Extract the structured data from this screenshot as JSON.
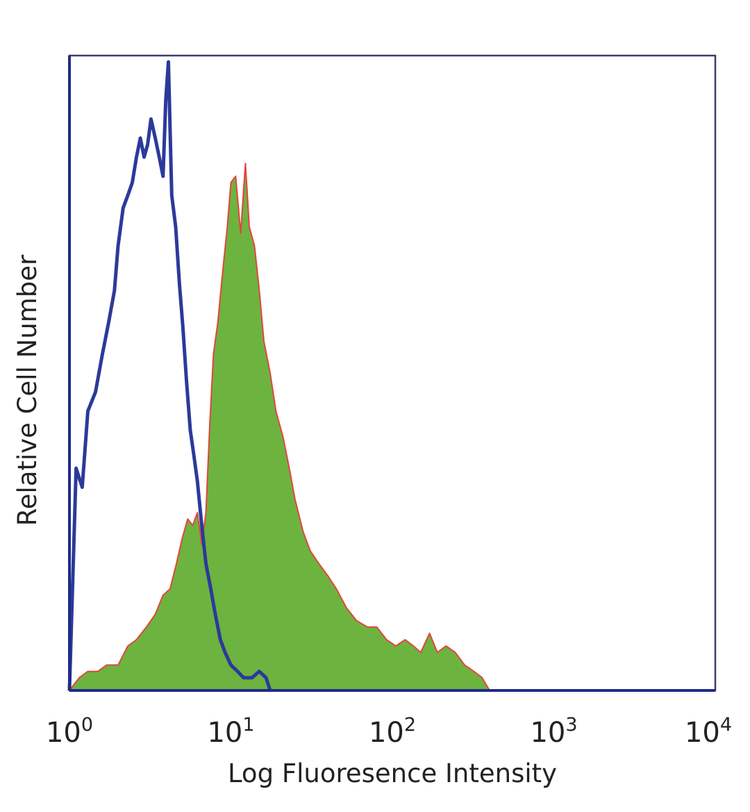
{
  "chart_data": {
    "type": "area",
    "xlabel": "Log Fluoresence Intensity",
    "ylabel": "Relative Cell Number",
    "x_scale": "log",
    "xlim": [
      1,
      10000
    ],
    "ylim": [
      0,
      1
    ],
    "grid": false,
    "x_ticks": [
      {
        "base": "10",
        "exp": "0"
      },
      {
        "base": "10",
        "exp": "1"
      },
      {
        "base": "10",
        "exp": "2"
      },
      {
        "base": "10",
        "exp": "3"
      },
      {
        "base": "10",
        "exp": "4"
      }
    ],
    "series": [
      {
        "style": "outline",
        "color": "#2b3a9a",
        "x": [
          1.0,
          1.1,
          1.2,
          1.3,
          1.45,
          1.6,
          1.75,
          1.9,
          2.0,
          2.15,
          2.3,
          2.45,
          2.6,
          2.75,
          2.9,
          3.05,
          3.2,
          3.4,
          3.6,
          3.8,
          3.95,
          4.1,
          4.3,
          4.55,
          4.8,
          5.05,
          5.3,
          5.6,
          5.9,
          6.2,
          6.6,
          7.0,
          7.5,
          8.0,
          8.6,
          9.2,
          10.0,
          11.0,
          12.0,
          13.5,
          15.0,
          16.5,
          17.5
        ],
        "y": [
          0.0,
          0.35,
          0.32,
          0.44,
          0.47,
          0.53,
          0.58,
          0.63,
          0.7,
          0.76,
          0.78,
          0.8,
          0.84,
          0.87,
          0.84,
          0.86,
          0.9,
          0.87,
          0.84,
          0.81,
          0.93,
          0.99,
          0.78,
          0.73,
          0.64,
          0.57,
          0.49,
          0.41,
          0.37,
          0.33,
          0.26,
          0.2,
          0.16,
          0.12,
          0.08,
          0.06,
          0.04,
          0.03,
          0.02,
          0.02,
          0.03,
          0.02,
          0.0
        ]
      },
      {
        "style": "filled",
        "color": "#6db33f",
        "edge_color": "#e0463c",
        "x": [
          1.0,
          1.15,
          1.3,
          1.5,
          1.7,
          2.0,
          2.3,
          2.6,
          3.0,
          3.4,
          3.8,
          4.2,
          4.6,
          5.0,
          5.4,
          5.8,
          6.2,
          6.6,
          7.0,
          7.4,
          7.8,
          8.3,
          8.9,
          9.5,
          10.0,
          10.7,
          11.5,
          12.3,
          13.0,
          14.0,
          15.0,
          16.0,
          17.5,
          19.0,
          21.0,
          23.0,
          25.0,
          28.0,
          31.0,
          35.0,
          40.0,
          45.0,
          52.0,
          60.0,
          70.0,
          80.0,
          92.0,
          105.0,
          120.0,
          135.0,
          150.0,
          170.0,
          190.0,
          215.0,
          245.0,
          280.0,
          320.0,
          360.0,
          400.0
        ],
        "y": [
          0.0,
          0.02,
          0.03,
          0.03,
          0.04,
          0.04,
          0.07,
          0.08,
          0.1,
          0.12,
          0.15,
          0.16,
          0.2,
          0.24,
          0.27,
          0.26,
          0.28,
          0.23,
          0.28,
          0.42,
          0.53,
          0.58,
          0.66,
          0.73,
          0.8,
          0.81,
          0.72,
          0.83,
          0.73,
          0.7,
          0.63,
          0.55,
          0.5,
          0.44,
          0.4,
          0.35,
          0.3,
          0.25,
          0.22,
          0.2,
          0.18,
          0.16,
          0.13,
          0.11,
          0.1,
          0.1,
          0.08,
          0.07,
          0.08,
          0.07,
          0.06,
          0.09,
          0.06,
          0.07,
          0.06,
          0.04,
          0.03,
          0.02,
          0.0
        ]
      }
    ]
  }
}
